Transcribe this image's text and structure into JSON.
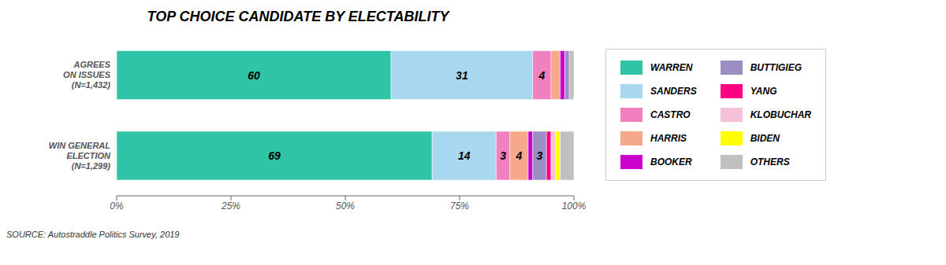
{
  "chart_data": {
    "type": "bar",
    "title": "TOP CHOICE CANDIDATE BY ELECTABILITY",
    "source": "SOURCE: Autostraddle Politics Survey, 2019",
    "orientation": "horizontal",
    "stacked": true,
    "data_labels": true,
    "grid": false,
    "legend": "right",
    "categories": [
      "AGREES\nON ISSUES\n(N=1,432)",
      "WIN GENERAL\nELECTION\n(N=1,299)"
    ],
    "xlim": [
      0,
      100
    ],
    "xticks": [
      {
        "value": 0,
        "label": "0%"
      },
      {
        "value": 25,
        "label": "25%"
      },
      {
        "value": 50,
        "label": "50%"
      },
      {
        "value": 75,
        "label": "75%"
      },
      {
        "value": 100,
        "label": "100%"
      }
    ],
    "series": [
      {
        "name": "WARREN",
        "color": "#2ec4a5",
        "values": [
          60,
          69
        ],
        "value_labels": [
          "60",
          "69"
        ]
      },
      {
        "name": "SANDERS",
        "color": "#a8d8f0",
        "values": [
          31,
          14
        ],
        "value_labels": [
          "31",
          "14"
        ]
      },
      {
        "name": "CASTRO",
        "color": "#f080c0",
        "values": [
          4,
          3
        ],
        "value_labels": [
          "4",
          "3"
        ]
      },
      {
        "name": "HARRIS",
        "color": "#f5a98a",
        "values": [
          2,
          4
        ],
        "value_labels": [
          null,
          "4"
        ]
      },
      {
        "name": "BOOKER",
        "color": "#cc00cc",
        "values": [
          1,
          1
        ]
      },
      {
        "name": "BUTTIGIEG",
        "color": "#9b8ec4",
        "values": [
          1,
          3
        ],
        "value_labels": [
          null,
          "3"
        ]
      },
      {
        "name": "YANG",
        "color": "#ff0080",
        "values": [
          0,
          1
        ]
      },
      {
        "name": "KLOBUCHAR",
        "color": "#f5c0d8",
        "values": [
          0,
          1
        ]
      },
      {
        "name": "BIDEN",
        "color": "#ffff00",
        "values": [
          0,
          1
        ]
      },
      {
        "name": "OTHERS",
        "color": "#c0c0c0",
        "values": [
          1,
          3
        ]
      }
    ]
  }
}
